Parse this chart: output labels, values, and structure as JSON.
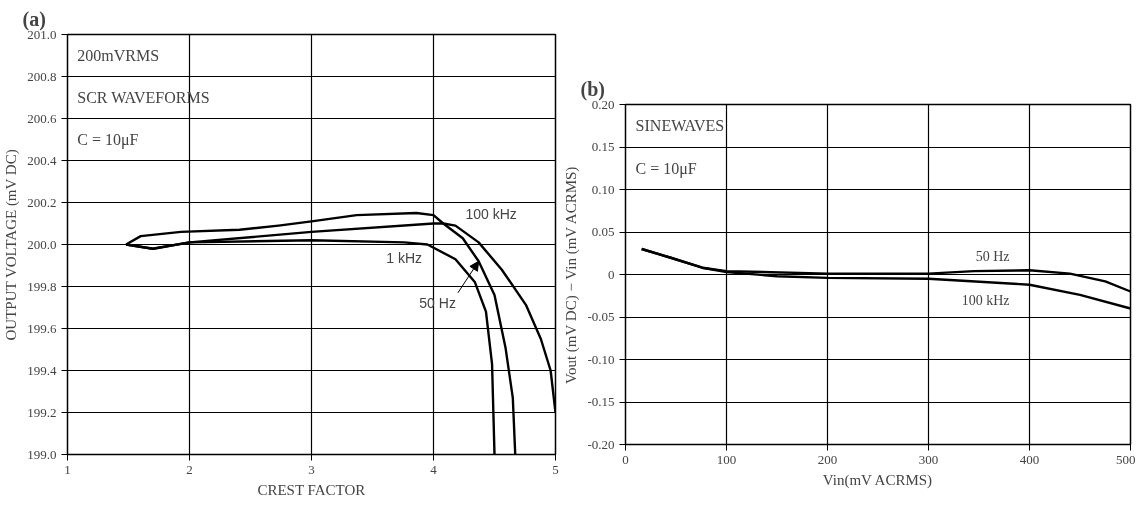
{
  "chart_data": [
    {
      "type": "line",
      "title": "(a)",
      "xlabel": "CREST FACTOR",
      "ylabel": "OUTPUT VOLTAGE (mV DC)",
      "xlim": [
        1,
        5
      ],
      "ylim": [
        199.0,
        201.0
      ],
      "xticks": [
        1,
        2,
        3,
        4,
        5
      ],
      "yticks": [
        {
          "value": 199.0,
          "label": "199.0"
        },
        {
          "value": 199.2,
          "label": "199.2"
        },
        {
          "value": 199.4,
          "label": "199.4"
        },
        {
          "value": 199.6,
          "label": "199.6"
        },
        {
          "value": 199.8,
          "label": "199.8"
        },
        {
          "value": 200.0,
          "label": "200.0"
        },
        {
          "value": 200.2,
          "label": "200.2"
        },
        {
          "value": 200.4,
          "label": "200.4"
        },
        {
          "value": 200.6,
          "label": "200.6"
        },
        {
          "value": 200.8,
          "label": "200.8"
        },
        {
          "value": 201.0,
          "label": "201.0"
        }
      ],
      "grid": true,
      "line_style": "solid",
      "marker": "none",
      "series": [
        {
          "color": "#000000",
          "x": [
            1.48,
            1.6,
            1.93,
            2.41,
            2.73,
            3.0,
            3.37,
            3.86,
            4.0,
            4.08,
            4.24,
            4.37,
            4.5,
            4.59,
            4.65,
            4.67
          ],
          "values": [
            200.0,
            200.04,
            200.06,
            200.07,
            200.09,
            200.11,
            200.14,
            200.15,
            200.14,
            200.1,
            200.03,
            199.92,
            199.76,
            199.51,
            199.27,
            199.0
          ]
        },
        {
          "color": "#000000",
          "x": [
            1.48,
            1.7,
            2.0,
            3.0,
            4.0,
            4.08,
            4.18,
            4.37,
            4.56,
            4.76,
            4.88,
            4.96,
            5.0
          ],
          "values": [
            200.0,
            199.98,
            200.01,
            200.06,
            200.1,
            200.1,
            200.09,
            200.01,
            199.88,
            199.71,
            199.55,
            199.4,
            199.2
          ]
        },
        {
          "color": "#000000",
          "x": [
            1.48,
            1.7,
            2.0,
            3.0,
            3.76,
            3.95,
            4.18,
            4.34,
            4.43,
            4.48,
            4.5
          ],
          "values": [
            200.0,
            199.98,
            200.01,
            200.02,
            200.01,
            200.0,
            199.93,
            199.82,
            199.68,
            199.43,
            199.0
          ]
        }
      ],
      "annotations": [
        "200mVRMS",
        "SCR WAVEFORMS",
        "C = 10μF",
        {
          "text": "100 kHz",
          "x": 4.18,
          "y": 200.09
        },
        {
          "text": "1 kHz",
          "x": 3.76,
          "y": 200.01
        },
        {
          "text": "50 Hz",
          "x": 4.37,
          "y": 199.92
        }
      ]
    },
    {
      "type": "line",
      "title": "(b)",
      "xlabel": "Vin(mV ACRMS)",
      "ylabel": "Vout (mV DC) − Vin (mV ACRMS)",
      "xlim": [
        0,
        500
      ],
      "ylim": [
        -0.2,
        0.2
      ],
      "xticks": [
        0,
        100,
        200,
        300,
        400,
        500
      ],
      "yticks": [
        {
          "value": -0.2,
          "label": "-0.20"
        },
        {
          "value": -0.15,
          "label": "-0.15"
        },
        {
          "value": -0.1,
          "label": "-0.10"
        },
        {
          "value": -0.05,
          "label": "-0.05"
        },
        0,
        {
          "value": 0.05,
          "label": "0.05"
        },
        {
          "value": 0.1,
          "label": "0.10"
        },
        {
          "value": 0.15,
          "label": "0.15"
        },
        {
          "value": 0.2,
          "label": "0.20"
        }
      ],
      "grid": true,
      "line_style": "solid",
      "marker": "none",
      "series": [
        {
          "color": "#000000",
          "x": [
            16,
            44,
            76,
            100,
            200,
            300,
            345,
            400,
            440,
            475,
            500
          ],
          "values": [
            0.03,
            0.02,
            0.008,
            0.004,
            0.001,
            0.001,
            0.004,
            0.005,
            0.001,
            -0.008,
            -0.02
          ]
        },
        {
          "color": "#000000",
          "x": [
            16,
            44,
            76,
            100,
            150,
            200,
            300,
            400,
            450,
            500
          ],
          "values": [
            0.03,
            0.02,
            0.008,
            0.003,
            -0.002,
            -0.004,
            -0.005,
            -0.012,
            -0.024,
            -0.04
          ]
        }
      ],
      "annotations": [
        "SINEWAVES",
        "C = 10μF",
        {
          "text": "50 Hz",
          "x": 400,
          "y": 0.005
        },
        {
          "text": "100 kHz",
          "x": 400,
          "y": -0.012
        }
      ]
    }
  ]
}
